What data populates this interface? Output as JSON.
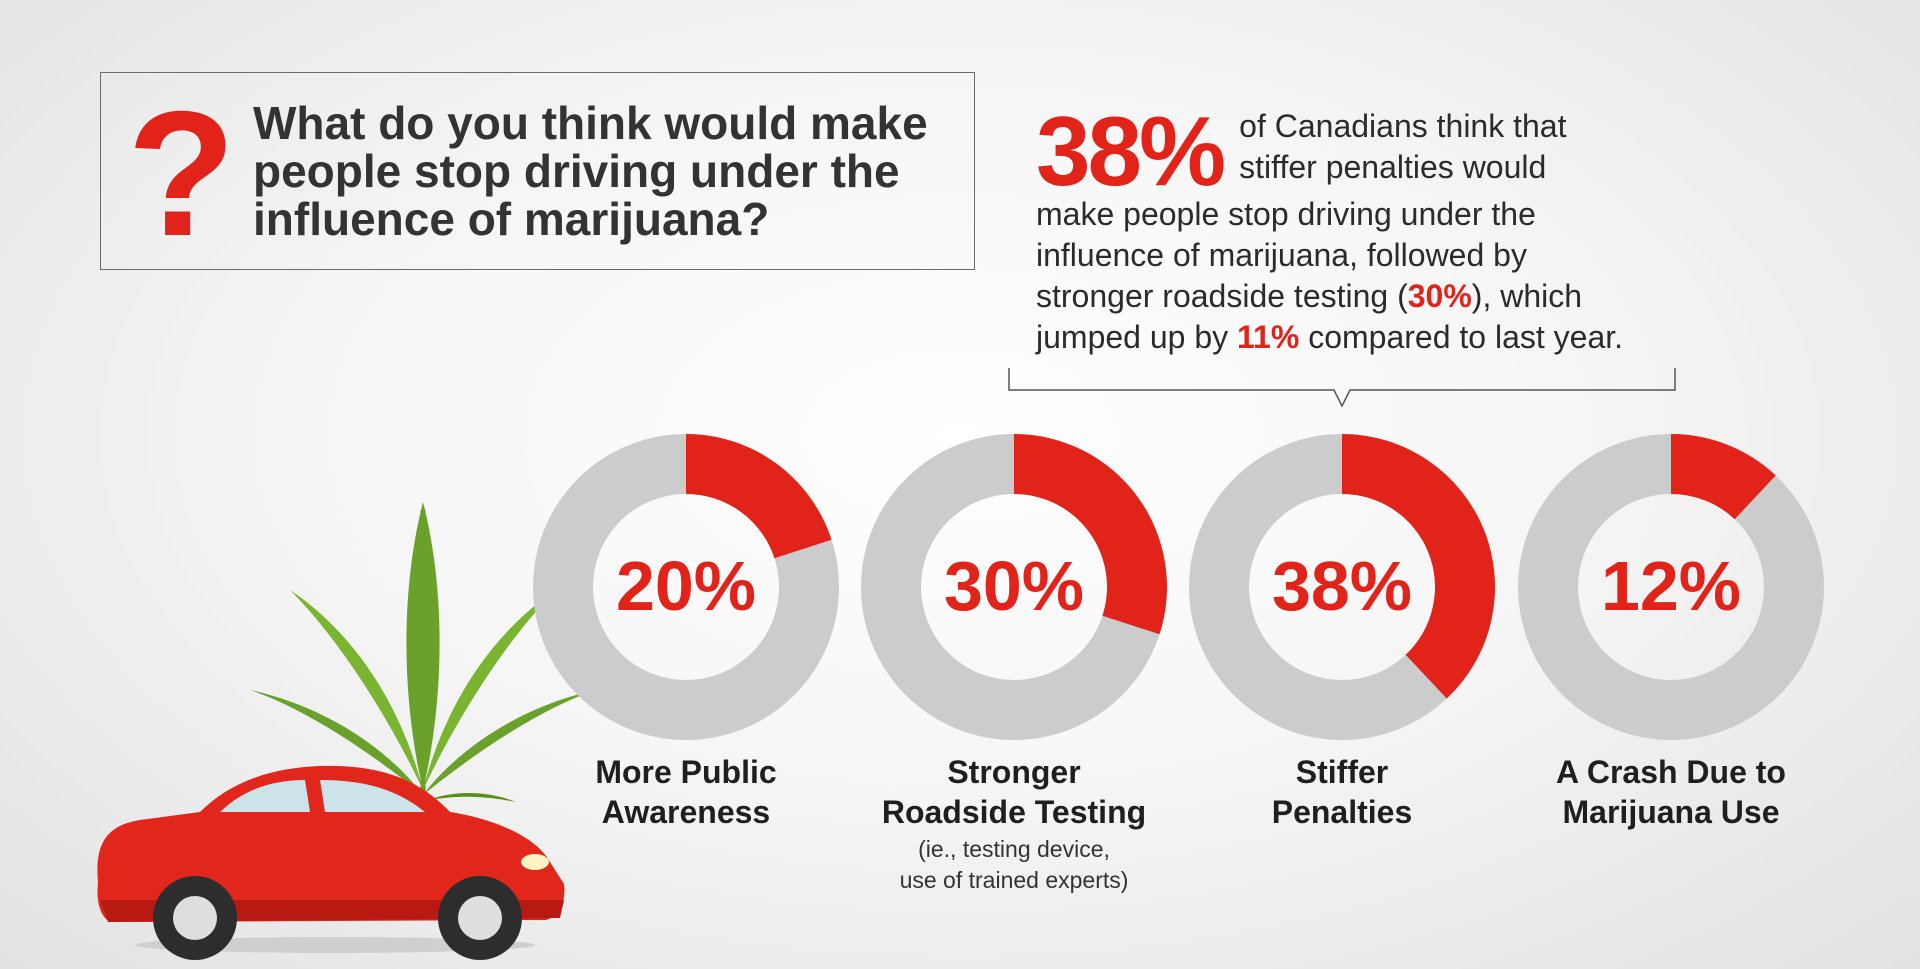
{
  "question": {
    "icon": "question-mark-icon",
    "glyph": "?",
    "line1": "What do you think would make",
    "line2": "people stop driving under the",
    "line3": "influence of marijuana?"
  },
  "highlight": {
    "big_stat": "38%",
    "t1": "of Canadians think that",
    "t2": "stiffer penalties would",
    "t3": "make people stop driving under the",
    "t4": "influence of marijuana, followed by",
    "t5a": "stronger roadside testing (",
    "t5b": "30%",
    "t5c": "), which",
    "t6a": "jumped up by ",
    "t6b": "11%",
    "t6c": " compared to last year."
  },
  "illustration": {
    "car": "red-car-icon",
    "leaf": "cannabis-leaf-icon"
  },
  "chart_data": {
    "type": "donut",
    "unit": "%",
    "max": 100,
    "colors": {
      "value": "#e2231a",
      "remainder": "#cccccc",
      "text": "#e2231a"
    },
    "items": [
      {
        "label": [
          "More Public",
          "Awareness"
        ],
        "value": 20,
        "display": "20%",
        "sub": []
      },
      {
        "label": [
          "Stronger",
          "Roadside Testing"
        ],
        "value": 30,
        "display": "30%",
        "sub": [
          "(ie., testing device,",
          "use of trained experts)"
        ]
      },
      {
        "label": [
          "Stiffer",
          "Penalties"
        ],
        "value": 38,
        "display": "38%",
        "sub": []
      },
      {
        "label": [
          "A Crash Due to",
          "Marijuana Use"
        ],
        "value": 12,
        "display": "12%",
        "sub": []
      }
    ]
  }
}
